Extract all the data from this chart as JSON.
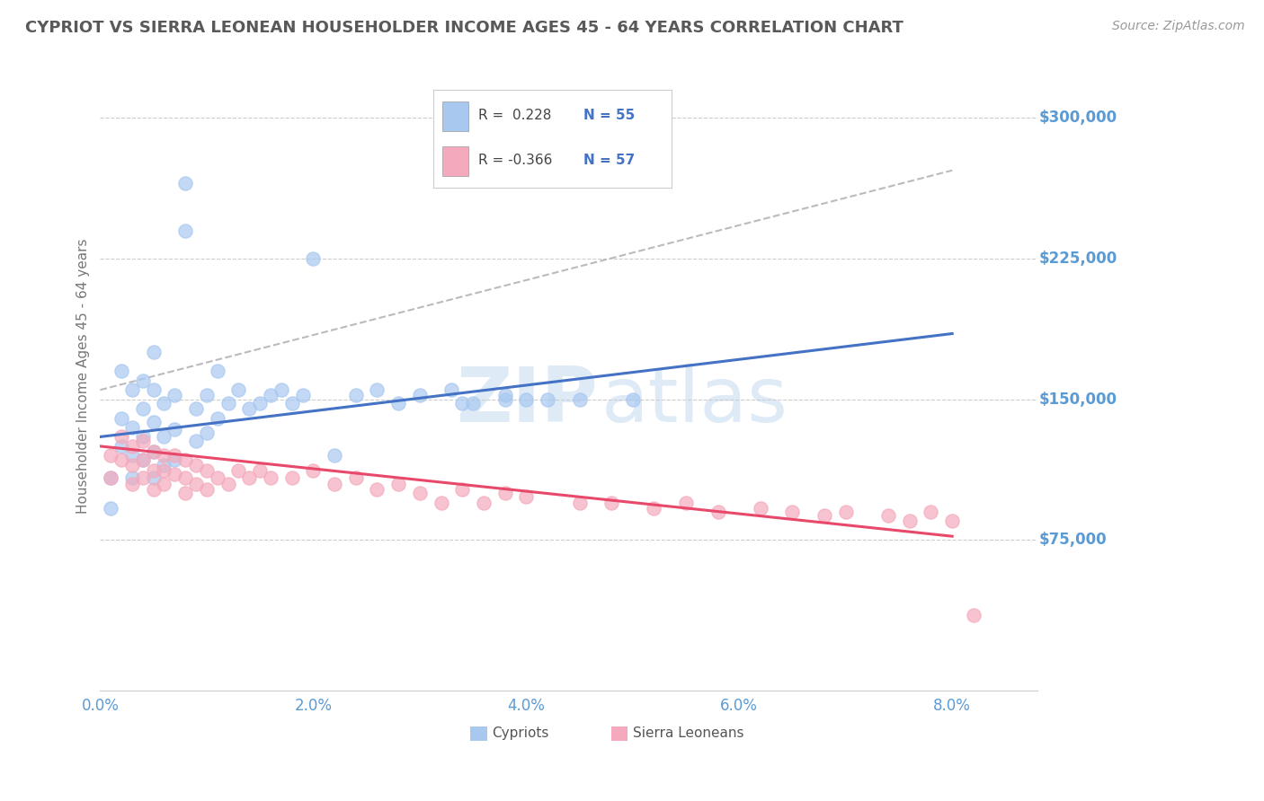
{
  "title": "CYPRIOT VS SIERRA LEONEAN HOUSEHOLDER INCOME AGES 45 - 64 YEARS CORRELATION CHART",
  "source": "Source: ZipAtlas.com",
  "ylabel": "Householder Income Ages 45 - 64 years",
  "xlim": [
    0.0,
    0.088
  ],
  "ylim": [
    -5000,
    330000
  ],
  "ytick_vals": [
    75000,
    150000,
    225000,
    300000
  ],
  "ytick_labels": [
    "$75,000",
    "$150,000",
    "$225,000",
    "$300,000"
  ],
  "xticks": [
    0.0,
    0.01,
    0.02,
    0.03,
    0.04,
    0.05,
    0.06,
    0.07,
    0.08
  ],
  "xtick_labels": [
    "0.0%",
    "",
    "2.0%",
    "",
    "4.0%",
    "",
    "6.0%",
    "",
    "8.0%"
  ],
  "legend_label1": "Cypriots",
  "legend_label2": "Sierra Leoneans",
  "R1": 0.228,
  "N1": 55,
  "R2": -0.366,
  "N2": 57,
  "color_blue_fill": "#A8C8F0",
  "color_pink_fill": "#F4AABC",
  "color_blue_line": "#4472C4",
  "color_pink_line": "#E8496A",
  "color_gray_dash": "#BBBBBB",
  "background_color": "#FFFFFF",
  "grid_color": "#CCCCCC",
  "axis_label_color": "#5B9BD5",
  "title_color": "#595959",
  "cypriot_x": [
    0.001,
    0.001,
    0.002,
    0.002,
    0.002,
    0.003,
    0.003,
    0.003,
    0.003,
    0.004,
    0.004,
    0.004,
    0.004,
    0.005,
    0.005,
    0.005,
    0.005,
    0.005,
    0.006,
    0.006,
    0.006,
    0.007,
    0.007,
    0.007,
    0.008,
    0.008,
    0.009,
    0.009,
    0.01,
    0.01,
    0.011,
    0.011,
    0.012,
    0.013,
    0.014,
    0.015,
    0.016,
    0.017,
    0.018,
    0.019,
    0.02,
    0.022,
    0.024,
    0.026,
    0.03,
    0.034,
    0.035,
    0.04,
    0.045,
    0.033,
    0.042,
    0.028,
    0.038,
    0.05,
    0.038
  ],
  "cypriot_y": [
    108000,
    92000,
    125000,
    140000,
    165000,
    108000,
    120000,
    135000,
    155000,
    118000,
    130000,
    145000,
    160000,
    108000,
    122000,
    138000,
    155000,
    175000,
    115000,
    130000,
    148000,
    118000,
    134000,
    152000,
    240000,
    265000,
    128000,
    145000,
    132000,
    152000,
    140000,
    165000,
    148000,
    155000,
    145000,
    148000,
    152000,
    155000,
    148000,
    152000,
    225000,
    120000,
    152000,
    155000,
    152000,
    148000,
    148000,
    150000,
    150000,
    155000,
    150000,
    148000,
    152000,
    150000,
    150000
  ],
  "sierraleonean_x": [
    0.001,
    0.001,
    0.002,
    0.002,
    0.003,
    0.003,
    0.003,
    0.004,
    0.004,
    0.004,
    0.005,
    0.005,
    0.005,
    0.006,
    0.006,
    0.006,
    0.007,
    0.007,
    0.008,
    0.008,
    0.008,
    0.009,
    0.009,
    0.01,
    0.01,
    0.011,
    0.012,
    0.013,
    0.014,
    0.015,
    0.016,
    0.018,
    0.02,
    0.022,
    0.024,
    0.026,
    0.028,
    0.03,
    0.032,
    0.034,
    0.036,
    0.038,
    0.04,
    0.045,
    0.048,
    0.052,
    0.055,
    0.058,
    0.062,
    0.065,
    0.068,
    0.07,
    0.074,
    0.076,
    0.078,
    0.08,
    0.082
  ],
  "sierraleonean_y": [
    120000,
    108000,
    130000,
    118000,
    125000,
    115000,
    105000,
    128000,
    118000,
    108000,
    122000,
    112000,
    102000,
    120000,
    112000,
    105000,
    120000,
    110000,
    118000,
    108000,
    100000,
    115000,
    105000,
    112000,
    102000,
    108000,
    105000,
    112000,
    108000,
    112000,
    108000,
    108000,
    112000,
    105000,
    108000,
    102000,
    105000,
    100000,
    95000,
    102000,
    95000,
    100000,
    98000,
    95000,
    95000,
    92000,
    95000,
    90000,
    92000,
    90000,
    88000,
    90000,
    88000,
    85000,
    90000,
    85000,
    35000
  ],
  "blue_line_x0": 0.0,
  "blue_line_y0": 130000,
  "blue_line_x1": 0.08,
  "blue_line_y1": 185000,
  "pink_line_x0": 0.0,
  "pink_line_y0": 125000,
  "pink_line_x1": 0.08,
  "pink_line_y1": 77000,
  "gray_line_x0": 0.0,
  "gray_line_y0": 155000,
  "gray_line_x1": 0.08,
  "gray_line_y1": 272000
}
